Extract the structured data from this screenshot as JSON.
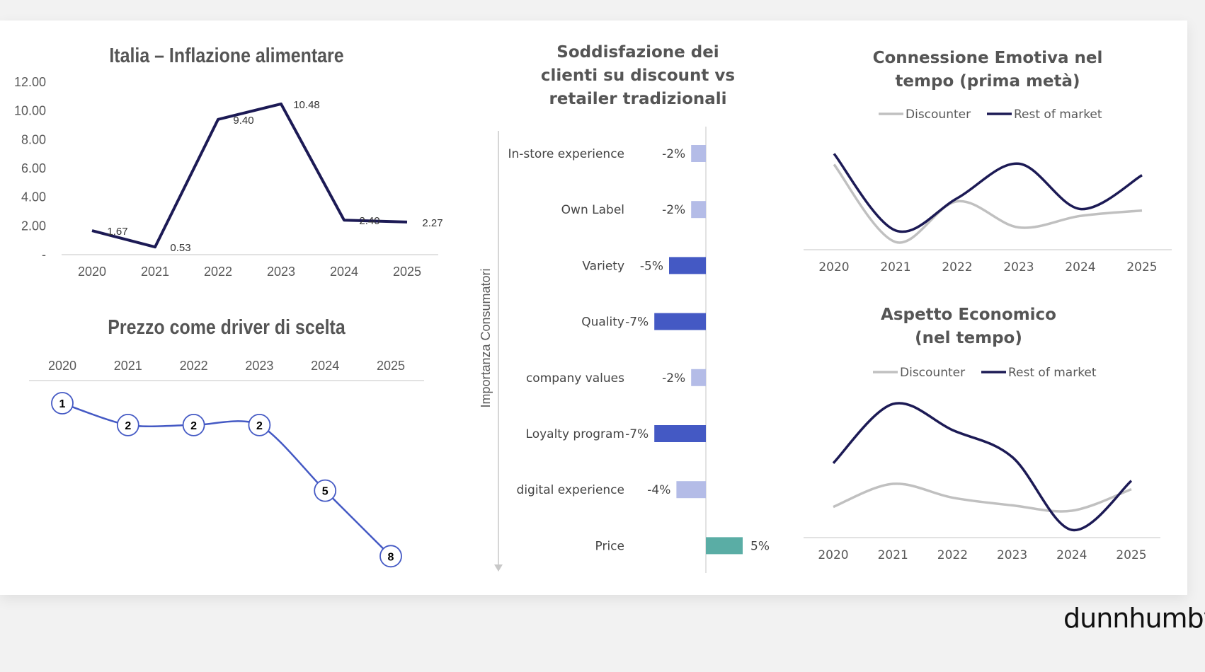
{
  "brand": "dunnhumby",
  "chart_data": [
    {
      "type": "line",
      "title": "Italia – Inflazione alimentare",
      "categories": [
        "2020",
        "2021",
        "2022",
        "2023",
        "2024",
        "2025"
      ],
      "values": [
        1.67,
        0.53,
        9.4,
        10.48,
        2.4,
        2.27
      ],
      "value_labels": [
        "1.67",
        "0.53",
        "9.40",
        "10.48",
        "2.40",
        "2.27"
      ],
      "y_ticks": [
        12,
        10,
        8,
        6,
        4,
        2,
        0
      ],
      "y_tick_labels": [
        "12.00",
        "10.00",
        "8.00",
        "6.00",
        "4.00",
        "2.00",
        "-"
      ],
      "ylim": [
        0,
        12
      ],
      "xlabel": "",
      "ylabel": "",
      "color": "#1c1a55"
    },
    {
      "type": "line",
      "title": "Prezzo come driver di scelta",
      "categories": [
        "2020",
        "2021",
        "2022",
        "2023",
        "2024",
        "2025"
      ],
      "values": [
        1,
        2,
        2,
        2,
        5,
        8
      ],
      "value_labels": [
        "1",
        "2",
        "2",
        "2",
        "5",
        "8"
      ],
      "y_inverted": true,
      "ylim": [
        1,
        8
      ],
      "color": "#4459c4"
    },
    {
      "type": "bar",
      "title_lines": [
        "Soddisfazione dei",
        "clienti su discount vs",
        "retailer tradizionali"
      ],
      "ylabel": "Importanza Consumatori",
      "categories": [
        "In-store experience",
        "Own Label",
        "Variety",
        "Quality",
        "company values",
        "Loyalty program",
        "digital experience",
        "Price"
      ],
      "values": [
        -2,
        -2,
        -5,
        -7,
        -2,
        -7,
        -4,
        5
      ],
      "value_labels": [
        "-2%",
        "-2%",
        "-5%",
        "-7%",
        "-2%",
        "-7%",
        "-4%",
        "5%"
      ],
      "colors": [
        "#b4bce7",
        "#b4bce7",
        "#4459c4",
        "#4459c4",
        "#b4bce7",
        "#4459c4",
        "#b4bce7",
        "#5aada5"
      ]
    },
    {
      "type": "line",
      "title_lines": [
        "Connessione Emotiva nel",
        "tempo (prima metà)"
      ],
      "categories": [
        "2020",
        "2021",
        "2022",
        "2023",
        "2024",
        "2025"
      ],
      "ylim": [
        0,
        14
      ],
      "legend": "top",
      "series": [
        {
          "name": "Discounter",
          "values": [
            11.1,
            1.0,
            6.3,
            2.9,
            4.4,
            5.1
          ],
          "color": "#c0c0c0"
        },
        {
          "name": "Rest of market",
          "values": [
            12.5,
            2.5,
            6.7,
            11.2,
            5.3,
            9.7
          ],
          "color": "#1c1a55"
        }
      ]
    },
    {
      "type": "line",
      "title_lines": [
        "Aspetto Economico",
        "(nel tempo)"
      ],
      "categories": [
        "2020",
        "2021",
        "2022",
        "2023",
        "2024",
        "2025"
      ],
      "ylim": [
        0,
        19
      ],
      "legend": "top",
      "series": [
        {
          "name": "Discounter",
          "values": [
            4.0,
            7.0,
            5.2,
            4.2,
            3.5,
            6.3
          ],
          "color": "#c0c0c0"
        },
        {
          "name": "Rest of market",
          "values": [
            9.7,
            17.4,
            14.0,
            10.5,
            1.0,
            7.4
          ],
          "color": "#1c1a55"
        }
      ]
    }
  ]
}
